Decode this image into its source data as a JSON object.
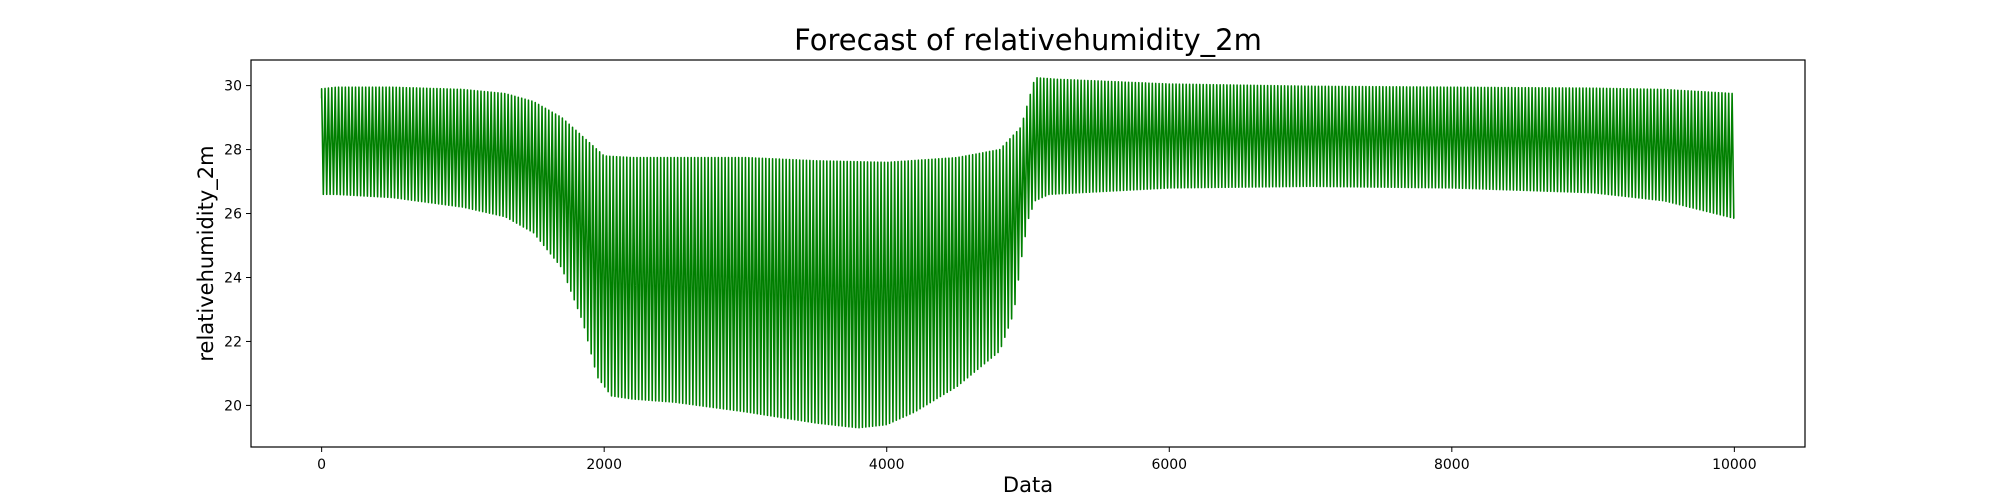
{
  "chart_data": {
    "type": "line",
    "title": "Forecast of relativehumidity_2m",
    "xlabel": "Data",
    "ylabel": "relativehumidity_2m",
    "xlim": [
      -500,
      10500
    ],
    "ylim": [
      18.7,
      30.8
    ],
    "xticks": [
      0,
      2000,
      4000,
      6000,
      8000,
      10000
    ],
    "yticks": [
      20,
      22,
      24,
      26,
      28,
      30
    ],
    "grid": false,
    "legend": "none",
    "color": "#008000",
    "series": [
      {
        "cycle_period": 24,
        "upper_envelope": {
          "x": [
            0,
            100,
            500,
            1000,
            1300,
            1500,
            1700,
            1900,
            2000,
            2200,
            3000,
            3500,
            4000,
            4500,
            4800,
            4950,
            5050,
            5200,
            6000,
            7000,
            8000,
            9000,
            9500,
            10000
          ],
          "y": [
            29.9,
            29.95,
            29.95,
            29.88,
            29.75,
            29.5,
            29.0,
            28.2,
            27.8,
            27.75,
            27.75,
            27.65,
            27.6,
            27.75,
            28.0,
            28.7,
            30.25,
            30.2,
            30.05,
            29.98,
            29.95,
            29.92,
            29.88,
            29.75
          ]
        },
        "lower_envelope": {
          "x": [
            0,
            10,
            100,
            500,
            1000,
            1300,
            1500,
            1700,
            1850,
            1950,
            2050,
            2200,
            2500,
            3000,
            3500,
            3800,
            4000,
            4200,
            4500,
            4800,
            4900,
            4950,
            5000,
            5050,
            5150,
            6000,
            7000,
            8000,
            9000,
            9500,
            10000
          ],
          "y": [
            26.2,
            26.6,
            26.6,
            26.5,
            26.2,
            25.9,
            25.4,
            24.3,
            22.6,
            20.9,
            20.3,
            20.2,
            20.1,
            19.8,
            19.45,
            19.3,
            19.4,
            19.8,
            20.6,
            21.7,
            22.9,
            24.5,
            25.8,
            26.4,
            26.6,
            26.8,
            26.85,
            26.8,
            26.65,
            26.4,
            25.85
          ]
        },
        "start_y": 29.6,
        "end_y": 25.85
      }
    ]
  }
}
